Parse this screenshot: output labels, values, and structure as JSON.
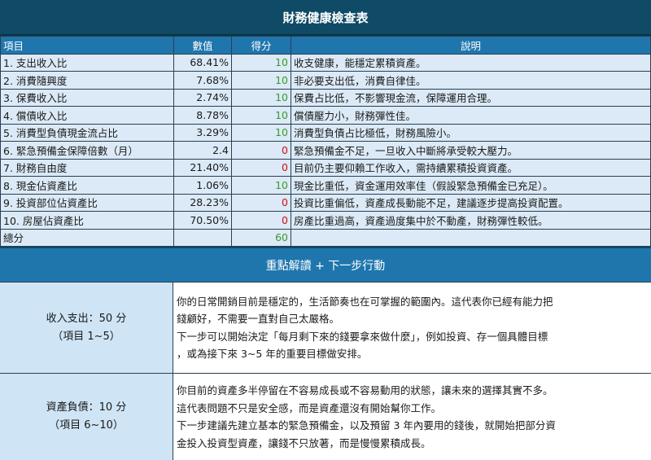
{
  "title": "財務健康檢查表",
  "columns": [
    "項目",
    "數值",
    "得分",
    "說明"
  ],
  "rows": [
    {
      "item": "1. 支出收入比",
      "value": "68.41%",
      "score": "10",
      "status": "good",
      "desc": "收支健康，能穩定累積資產。"
    },
    {
      "item": "2. 消費隨興度",
      "value": "7.68%",
      "score": "10",
      "status": "good",
      "desc": "非必要支出低，消費自律佳。"
    },
    {
      "item": "3. 保費收入比",
      "value": "2.74%",
      "score": "10",
      "status": "good",
      "desc": "保費占比低，不影響現金流，保障運用合理。"
    },
    {
      "item": "4. 償債收入比",
      "value": "8.78%",
      "score": "10",
      "status": "good",
      "desc": "償債壓力小，財務彈性佳。"
    },
    {
      "item": "5. 消費型負債現金流占比",
      "value": "3.29%",
      "score": "10",
      "status": "good",
      "desc": "消費型負債占比極低，財務風險小。"
    },
    {
      "item": "6. 緊急預備金保障倍數（月）",
      "value": "2.4",
      "score": "0",
      "status": "bad",
      "desc": "緊急預備金不足，一旦收入中斷將承受較大壓力。"
    },
    {
      "item": "7. 財務自由度",
      "value": "21.40%",
      "score": "0",
      "status": "bad",
      "desc": "目前仍主要仰賴工作收入，需持續累積投資資產。"
    },
    {
      "item": "8. 現金佔資產比",
      "value": "1.06%",
      "score": "10",
      "status": "good",
      "desc": "現金比重低，資金運用效率佳（假設緊急預備金已充足）。"
    },
    {
      "item": "9. 投資部位佔資產比",
      "value": "28.23%",
      "score": "0",
      "status": "bad",
      "desc": "投資比重偏低，資產成長動能不足，建議逐步提高投資配置。"
    },
    {
      "item": "10. 房屋佔資產比",
      "value": "70.50%",
      "score": "0",
      "status": "bad",
      "desc": "房產比重過高，資產過度集中於不動產，財務彈性較低。"
    }
  ],
  "total": {
    "label": "總分",
    "score": "60"
  },
  "section_title": "重點解讀 + 下一步行動",
  "blocks": [
    {
      "label": "收入支出：50 分",
      "range": "（項目 1~5）",
      "lines": [
        "你的日常開銷目前是穩定的，生活節奏也在可掌握的範圍內。這代表你已經有能力把",
        "錢顧好，不需要一直對自己太嚴格。",
        "下一步可以開始決定「每月剩下來的錢要拿來做什麼」，例如投資、存一個具體目標",
        "，或為接下來 3~5 年的重要目標做安排。"
      ]
    },
    {
      "label": "資產負債：10 分",
      "range": "（項目 6~10）",
      "lines": [
        "你目前的資產多半停留在不容易成長或不容易動用的狀態，讓未來的選擇其實不多。",
        "這代表問題不只是安全感，而是資產還沒有開始幫你工作。",
        "下一步建議先建立基本的緊急預備金，以及預留 3 年內要用的錢後，就開始把部分資",
        "金投入投資型資產，讓錢不只放著，而是慢慢累積成長。"
      ]
    }
  ],
  "colors": {
    "title_bg": "#0f4a66",
    "header_bg": "#1f76ad",
    "row_bg": "#dbeaf6",
    "good": "#3a9a2a",
    "bad": "#d01010"
  }
}
